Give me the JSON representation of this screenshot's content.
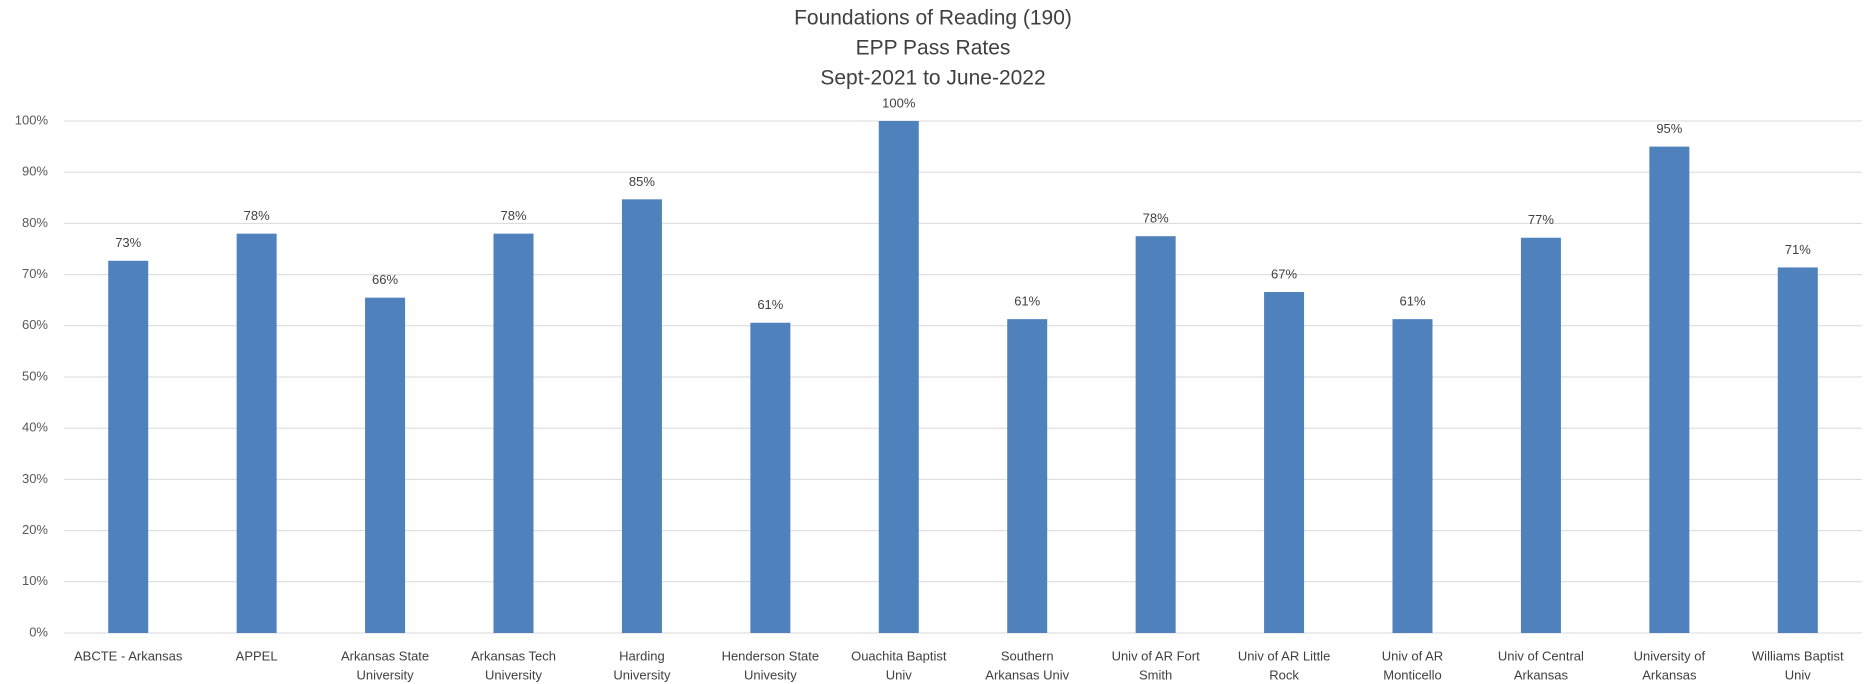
{
  "chart_data": {
    "type": "bar",
    "title": [
      "Foundations of Reading (190)",
      "EPP Pass Rates",
      "Sept-2021 to June-2022"
    ],
    "categories": [
      [
        "ABCTE - Arkansas"
      ],
      [
        "APPEL"
      ],
      [
        "Arkansas State",
        "University"
      ],
      [
        "Arkansas Tech",
        "University"
      ],
      [
        "Harding",
        "University"
      ],
      [
        "Henderson State",
        "Univesity"
      ],
      [
        "Ouachita Baptist",
        "Univ"
      ],
      [
        "Southern",
        "Arkansas Univ"
      ],
      [
        "Univ of AR Fort",
        "Smith"
      ],
      [
        "Univ of AR Little",
        "Rock"
      ],
      [
        "Univ of AR",
        "Monticello"
      ],
      [
        "Univ of Central",
        "Arkansas"
      ],
      [
        "University of",
        "Arkansas"
      ],
      [
        "Williams Baptist",
        "Univ"
      ]
    ],
    "values": [
      72.7,
      78,
      65.5,
      78,
      84.7,
      60.6,
      100,
      61.3,
      77.5,
      66.6,
      61.3,
      77.2,
      95,
      71.4
    ],
    "value_labels": [
      "73%",
      "78%",
      "66%",
      "78%",
      "85%",
      "61%",
      "100%",
      "61%",
      "78%",
      "67%",
      "61%",
      "77%",
      "95%",
      "71%"
    ],
    "color": "#4f81bd",
    "ylim": [
      0,
      100
    ],
    "yticks": [
      {
        "value": 0,
        "label": "0%"
      },
      {
        "value": 10,
        "label": "10%"
      },
      {
        "value": 20,
        "label": "20%"
      },
      {
        "value": 30,
        "label": "30%"
      },
      {
        "value": 40,
        "label": "40%"
      },
      {
        "value": 50,
        "label": "50%"
      },
      {
        "value": 60,
        "label": "60%"
      },
      {
        "value": 70,
        "label": "70%"
      },
      {
        "value": 80,
        "label": "80%"
      },
      {
        "value": 90,
        "label": "90%"
      },
      {
        "value": 100,
        "label": "100%"
      }
    ],
    "grid": true
  }
}
